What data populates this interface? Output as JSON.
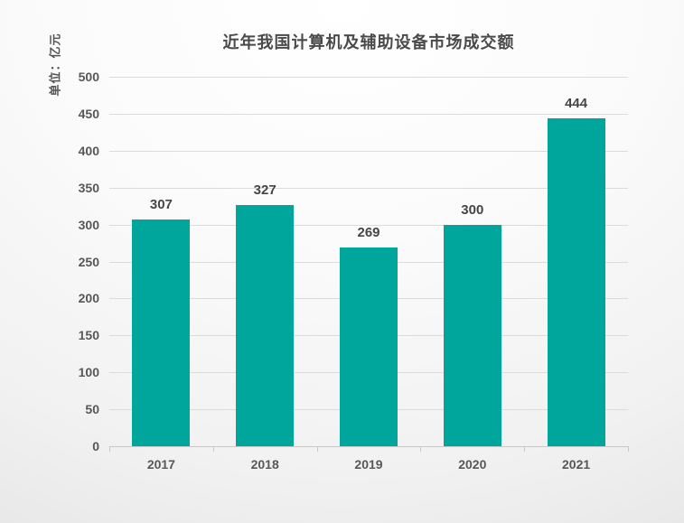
{
  "chart_data": {
    "type": "bar",
    "title": "近年我国计算机及辅助设备市场成交额",
    "ylabel": "单位：亿元",
    "xlabel": "",
    "categories": [
      "2017",
      "2018",
      "2019",
      "2020",
      "2021"
    ],
    "values": [
      307,
      327,
      269,
      300,
      444
    ],
    "ylim": [
      0,
      500
    ],
    "ytick_step": 50,
    "bar_color": "#00a69b",
    "grid": "horizontal",
    "legend": "none",
    "data_labels": "above-bars"
  }
}
